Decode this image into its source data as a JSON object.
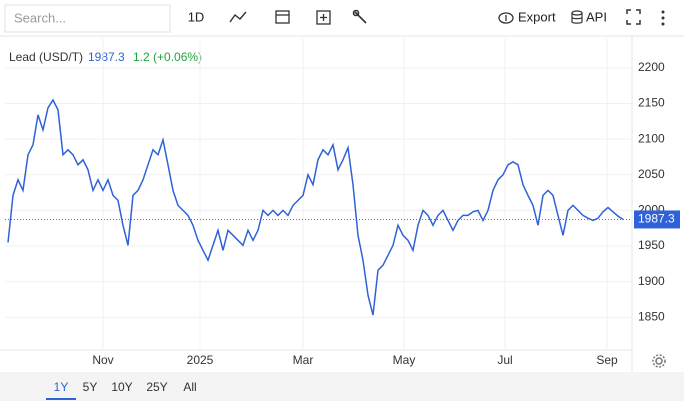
{
  "toolbar": {
    "search_placeholder": "Search...",
    "interval": "1D",
    "export": "Export",
    "api": "API"
  },
  "range_buttons": [
    "1Y",
    "5Y",
    "10Y",
    "25Y",
    "All"
  ],
  "chart_data": {
    "type": "line",
    "change": "1.2 (+0.06%)",
    "x": [
      0,
      1,
      2,
      3,
      4,
      5,
      6,
      7,
      8,
      9,
      10,
      11,
      12,
      13,
      14,
      15,
      16,
      17,
      18,
      19,
      20,
      21,
      22,
      23,
      24,
      25,
      26,
      27,
      28,
      29,
      30,
      31,
      32,
      33,
      34,
      35,
      36,
      37,
      38,
      39,
      40,
      41,
      42,
      43,
      44,
      45,
      46,
      47,
      48,
      49,
      50,
      51,
      52,
      53,
      54,
      55,
      56,
      57,
      58,
      59,
      60,
      61,
      62,
      63,
      64,
      65,
      66,
      67,
      68,
      69,
      70,
      71,
      72,
      73,
      74,
      75,
      76,
      77,
      78,
      79,
      80,
      81,
      82,
      83,
      84,
      85,
      86,
      87,
      88,
      89,
      90,
      91,
      92,
      93,
      94,
      95,
      96,
      97,
      98,
      99,
      100,
      101,
      102,
      103,
      104,
      105,
      106,
      107,
      108,
      109,
      110,
      111,
      112,
      113,
      114,
      115,
      116,
      117,
      118,
      119,
      120,
      121,
      122,
      123
    ],
    "series": [
      {
        "name": "Lead (USD/T)",
        "color": "#2f62d8",
        "values": [
          1955,
          2021,
          2043,
          2028,
          2078,
          2092,
          2134,
          2113,
          2144,
          2155,
          2141,
          2078,
          2085,
          2078,
          2064,
          2071,
          2057,
          2028,
          2043,
          2028,
          2043,
          2021,
          2014,
          1979,
          1951,
          2021,
          2028,
          2043,
          2064,
          2085,
          2078,
          2099,
          2064,
          2028,
          2007,
          2000,
          1993,
          1979,
          1958,
          1944,
          1930,
          1951,
          1972,
          1944,
          1972,
          1965,
          1958,
          1951,
          1972,
          1958,
          1972,
          2000,
          1993,
          2000,
          1993,
          2000,
          1993,
          2007,
          2014,
          2021,
          2050,
          2036,
          2071,
          2085,
          2078,
          2092,
          2057,
          2071,
          2088,
          2036,
          1965,
          1930,
          1881,
          1853,
          1916,
          1923,
          1937,
          1951,
          1979,
          1965,
          1958,
          1944,
          1979,
          2000,
          1993,
          1979,
          1993,
          2000,
          1986,
          1972,
          1986,
          1993,
          1993,
          1998,
          2000,
          1986,
          2000,
          2028,
          2043,
          2050,
          2064,
          2068,
          2064,
          2036,
          2021,
          2007,
          1979,
          2021,
          2028,
          2021,
          1993,
          1965,
          2000,
          2007,
          2000,
          1993,
          1989,
          1986,
          1989,
          1998,
          2004,
          1998,
          1992,
          1987.3
        ]
      }
    ],
    "xlim": [
      -0.6,
      124.8
    ],
    "xticks": [
      {
        "value": 19,
        "label": "Nov"
      },
      {
        "value": 38.4,
        "label": "2025"
      },
      {
        "value": 59,
        "label": "Mar"
      },
      {
        "value": 79.2,
        "label": "May"
      },
      {
        "value": 99.4,
        "label": "Jul"
      },
      {
        "value": 119.8,
        "label": "Sep"
      }
    ],
    "ylim": [
      1804,
      2242
    ],
    "yticks": [
      1850,
      1900,
      1950,
      2000,
      2050,
      2100,
      2150,
      2200
    ],
    "grid": true
  }
}
